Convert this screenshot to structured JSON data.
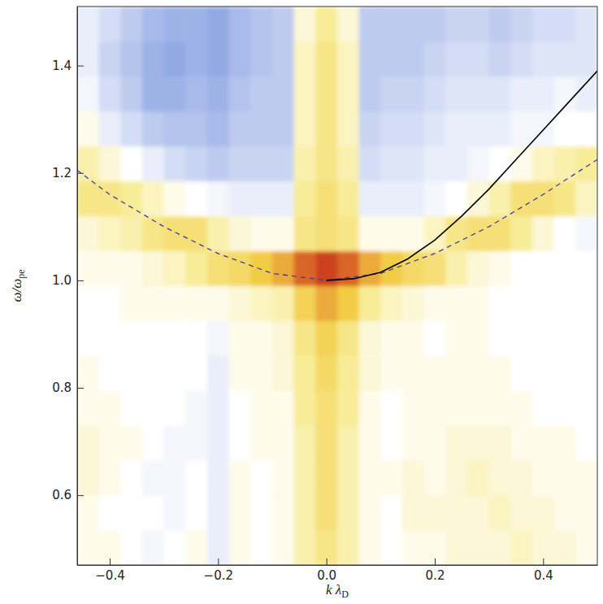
{
  "chart_data": {
    "type": "heatmap",
    "xlabel": {
      "text": "k λ",
      "subscript": "D"
    },
    "ylabel": {
      "text": "ω/ω",
      "subscript": "pe"
    },
    "xlim": [
      -0.46,
      0.5
    ],
    "ylim": [
      0.47,
      1.51
    ],
    "xticks": [
      {
        "value": -0.4,
        "label": "−0.4"
      },
      {
        "value": -0.2,
        "label": "−0.2"
      },
      {
        "value": 0,
        "label": "0.0"
      },
      0.2,
      0.4
    ],
    "yticks": [
      0.6,
      0.8,
      {
        "value": 1,
        "label": "1.0"
      },
      1.2,
      1.4
    ],
    "x_bins": [
      -0.46,
      -0.42,
      -0.38,
      -0.34,
      -0.3,
      -0.26,
      -0.22,
      -0.18,
      -0.14,
      -0.1,
      -0.06,
      -0.02,
      0.02,
      0.06,
      0.1,
      0.14,
      0.18,
      0.22,
      0.26,
      0.3,
      0.34,
      0.38,
      0.42,
      0.46,
      0.5
    ],
    "y_bins": [
      0.47,
      0.535,
      0.6,
      0.665,
      0.73,
      0.795,
      0.86,
      0.925,
      0.99,
      1.055,
      1.12,
      1.185,
      1.25,
      1.315,
      1.38,
      1.445,
      1.51
    ],
    "zlim": [
      -1,
      1
    ],
    "z": [
      [
        0.05,
        0.05,
        0,
        -0.05,
        0,
        0.05,
        -0.1,
        0.05,
        0,
        0.05,
        0.2,
        0.3,
        0.2,
        0.05,
        0,
        0.05,
        0.05,
        0.1,
        0.1,
        0.1,
        0.15,
        0.1,
        0.1,
        0.05
      ],
      [
        0.05,
        0,
        0,
        0,
        -0.05,
        0,
        -0.1,
        0.05,
        0,
        0.05,
        0.2,
        0.35,
        0.2,
        0.05,
        0,
        0.1,
        0.1,
        0.1,
        0.1,
        0.15,
        0.1,
        0.1,
        0.05,
        0.05
      ],
      [
        0.1,
        0.05,
        0,
        -0.05,
        -0.05,
        0,
        -0.1,
        0.05,
        0,
        0.05,
        0.2,
        0.35,
        0.2,
        0.05,
        0.05,
        0.1,
        0.05,
        0.1,
        0.15,
        0.1,
        0.1,
        0.05,
        0.05,
        0.05
      ],
      [
        0.1,
        0.05,
        0.05,
        0,
        -0.05,
        -0.05,
        -0.1,
        0,
        0.05,
        0.05,
        0.2,
        0.35,
        0.2,
        0.05,
        0,
        0.05,
        0.05,
        0.1,
        0.1,
        0.1,
        0.05,
        0.05,
        0.05,
        0
      ],
      [
        0.05,
        0.05,
        0,
        0,
        0,
        -0.05,
        -0.1,
        0,
        0.05,
        0.05,
        0.25,
        0.35,
        0.25,
        0.05,
        0,
        0.05,
        0.05,
        0.05,
        0.05,
        0.05,
        0.05,
        0,
        0,
        0
      ],
      [
        0.05,
        0,
        0,
        0,
        0,
        0,
        -0.1,
        0.05,
        0.05,
        0.1,
        0.25,
        0.4,
        0.25,
        0.1,
        0.05,
        0.05,
        0.05,
        0.05,
        0.05,
        0.05,
        0,
        0,
        0,
        0
      ],
      [
        0,
        0,
        0,
        0,
        0,
        0,
        -0.05,
        0.05,
        0.05,
        0.1,
        0.3,
        0.45,
        0.3,
        0.1,
        0.05,
        0.05,
        0,
        0.05,
        0.05,
        0,
        0,
        0,
        0,
        0
      ],
      [
        0,
        0,
        0.05,
        0.05,
        0.05,
        0.05,
        0.05,
        0.1,
        0.15,
        0.2,
        0.45,
        0.6,
        0.5,
        0.25,
        0.15,
        0.1,
        0.05,
        0.05,
        0.05,
        0,
        0,
        0,
        0,
        0
      ],
      [
        0.05,
        0.05,
        0.05,
        0.1,
        0.15,
        0.25,
        0.35,
        0.4,
        0.5,
        0.6,
        0.8,
        0.9,
        0.8,
        0.6,
        0.5,
        0.4,
        0.35,
        0.2,
        0.1,
        0.05,
        0,
        0,
        0,
        0
      ],
      [
        0.1,
        0.15,
        0.2,
        0.3,
        0.35,
        0.35,
        0.2,
        0.1,
        0.05,
        0.05,
        0.3,
        0.35,
        0.3,
        0.05,
        0.05,
        0.05,
        0.15,
        0.3,
        0.35,
        0.35,
        0.25,
        0.1,
        0,
        -0.05
      ],
      [
        0.3,
        0.3,
        0.25,
        0.15,
        0.05,
        0,
        -0.05,
        -0.1,
        -0.1,
        -0.1,
        0.25,
        0.35,
        0.25,
        -0.1,
        -0.1,
        -0.1,
        -0.05,
        0,
        0.1,
        0.2,
        0.35,
        0.35,
        0.3,
        0.15
      ],
      [
        0.2,
        0.1,
        0,
        -0.1,
        -0.2,
        -0.25,
        -0.3,
        -0.25,
        -0.25,
        -0.25,
        0.2,
        0.3,
        0.2,
        -0.2,
        -0.15,
        -0.15,
        -0.1,
        -0.1,
        -0.05,
        0,
        0.05,
        0.15,
        0.2,
        0.25
      ],
      [
        0.05,
        -0.1,
        -0.2,
        -0.3,
        -0.35,
        -0.35,
        -0.4,
        -0.3,
        -0.3,
        -0.3,
        0.15,
        0.3,
        0.15,
        -0.25,
        -0.2,
        -0.2,
        -0.15,
        -0.1,
        -0.1,
        -0.1,
        -0.05,
        -0.05,
        0,
        0
      ],
      [
        -0.05,
        -0.2,
        -0.3,
        -0.45,
        -0.45,
        -0.4,
        -0.45,
        -0.35,
        -0.3,
        -0.3,
        0.15,
        0.3,
        0.15,
        -0.3,
        -0.25,
        -0.25,
        -0.2,
        -0.15,
        -0.15,
        -0.15,
        -0.1,
        -0.1,
        -0.05,
        -0.1
      ],
      [
        -0.1,
        -0.25,
        -0.35,
        -0.45,
        -0.5,
        -0.45,
        -0.5,
        -0.4,
        -0.35,
        -0.3,
        0.15,
        0.3,
        0.15,
        -0.3,
        -0.3,
        -0.3,
        -0.25,
        -0.2,
        -0.2,
        -0.25,
        -0.2,
        -0.15,
        -0.15,
        -0.15
      ],
      [
        -0.1,
        -0.2,
        -0.3,
        -0.4,
        -0.45,
        -0.45,
        -0.5,
        -0.4,
        -0.35,
        -0.3,
        0.1,
        0.25,
        0.1,
        -0.3,
        -0.3,
        -0.3,
        -0.3,
        -0.25,
        -0.25,
        -0.3,
        -0.25,
        -0.2,
        -0.2,
        -0.15
      ]
    ],
    "series": [
      {
        "type": "line",
        "line_style": "dashed",
        "color": "#3b3f9c",
        "x": [
          -0.46,
          -0.4,
          -0.3,
          -0.2,
          -0.1,
          0,
          0.1,
          0.2,
          0.3,
          0.4,
          0.5
        ],
        "values": [
          1.205,
          1.16,
          1.1,
          1.05,
          1.013,
          1.0,
          1.013,
          1.05,
          1.1,
          1.16,
          1.225
        ]
      },
      {
        "type": "line",
        "line_style": "solid",
        "color": "#000000",
        "x": [
          0,
          0.05,
          0.1,
          0.15,
          0.2,
          0.25,
          0.3,
          0.35,
          0.4,
          0.45,
          0.5
        ],
        "values": [
          1.0,
          1.003,
          1.015,
          1.04,
          1.075,
          1.12,
          1.17,
          1.225,
          1.28,
          1.335,
          1.39
        ]
      }
    ]
  }
}
